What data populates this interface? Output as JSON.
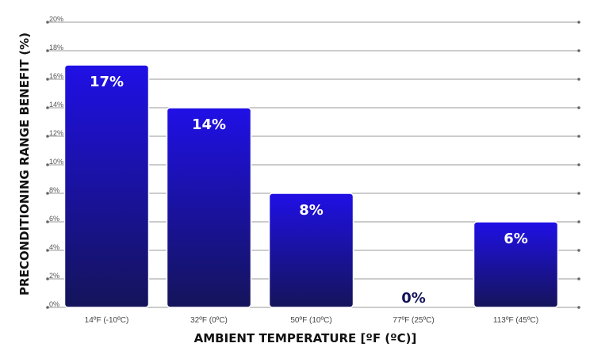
{
  "chart_data": {
    "type": "bar",
    "categories": [
      "14ºF (-10ºC)",
      "32ºF (0ºC)",
      "50ºF (10ºC)",
      "77ºF (25ºC)",
      "113ºF (45ºC)"
    ],
    "values": [
      17,
      14,
      8,
      0,
      6
    ],
    "data_labels": [
      "17%",
      "14%",
      "8%",
      "0%",
      "6%"
    ],
    "title": "",
    "xlabel": "AMBIENT TEMPERATURE [ºF (ºC)]",
    "ylabel": "PRECONDITIONING RANGE BENEFIT (%)",
    "ylim": [
      0,
      20
    ],
    "yticks": [
      0,
      2,
      4,
      6,
      8,
      10,
      12,
      14,
      16,
      18,
      20
    ],
    "ytick_labels": [
      "0%",
      "2%",
      "4%",
      "6%",
      "8%",
      "10%",
      "12%",
      "14%",
      "16%",
      "18%",
      "20%"
    ],
    "grid": true,
    "legend": "none",
    "colors": {
      "bar_top": "#2010e6",
      "bar_bottom": "#14145a",
      "bar_label": "#ffffff",
      "zero_label": "#14145a",
      "grid": "#9a9a9a"
    }
  }
}
